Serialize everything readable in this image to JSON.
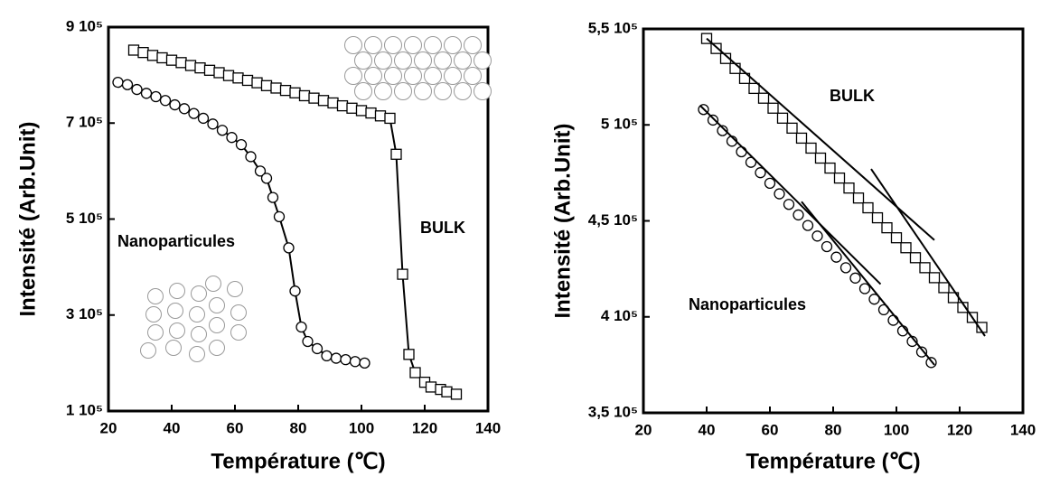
{
  "chart_data": [
    {
      "type": "line",
      "xlabel": "Température (℃)",
      "ylabel": "Intensité (Arb.Unit)",
      "xlim": [
        20,
        140
      ],
      "ylim": [
        100000,
        900000
      ],
      "xticks": [
        20,
        40,
        60,
        80,
        100,
        120,
        140
      ],
      "yticks": [
        {
          "value": 100000,
          "label": "1 10⁵"
        },
        {
          "value": 300000,
          "label": "3 10⁵"
        },
        {
          "value": 500000,
          "label": "5 10⁵"
        },
        {
          "value": 700000,
          "label": "7 10⁵"
        },
        {
          "value": 900000,
          "label": "9 10⁵"
        }
      ],
      "series": [
        {
          "name": "Nanoparticules",
          "color": "#000000",
          "marker": "circle",
          "x": [
            23,
            26,
            29,
            32,
            35,
            38,
            41,
            44,
            47,
            50,
            53,
            56,
            59,
            62,
            65,
            68,
            70,
            72,
            74,
            77,
            79,
            81,
            83,
            86,
            89,
            92,
            95,
            98,
            101
          ],
          "values": [
            785000,
            780000,
            770000,
            762000,
            755000,
            747000,
            738000,
            730000,
            720000,
            710000,
            698000,
            685000,
            670000,
            655000,
            630000,
            600000,
            585000,
            545000,
            505000,
            440000,
            350000,
            275000,
            245000,
            230000,
            215000,
            210000,
            207000,
            203000,
            200000
          ]
        },
        {
          "name": "BULK",
          "color": "#000000",
          "marker": "square",
          "x": [
            28,
            31,
            34,
            37,
            40,
            43,
            46,
            49,
            52,
            55,
            58,
            61,
            64,
            67,
            70,
            73,
            76,
            79,
            82,
            85,
            88,
            91,
            94,
            97,
            100,
            103,
            106,
            109,
            111,
            113,
            115,
            117,
            120,
            122,
            125,
            127,
            130
          ],
          "values": [
            852000,
            847000,
            841000,
            836000,
            831000,
            826000,
            820000,
            815000,
            810000,
            805000,
            799000,
            794000,
            789000,
            784000,
            778000,
            773000,
            768000,
            763000,
            757000,
            752000,
            747000,
            742000,
            736000,
            731000,
            726000,
            721000,
            715000,
            710000,
            635000,
            385000,
            218000,
            180000,
            160000,
            150000,
            145000,
            140000,
            135000
          ]
        }
      ]
    },
    {
      "type": "scatter",
      "xlabel": "Température (℃)",
      "ylabel": "Intensité (Arb.Unit)",
      "xlim": [
        20,
        140
      ],
      "ylim": [
        350000,
        550000
      ],
      "xticks": [
        20,
        40,
        60,
        80,
        100,
        120,
        140
      ],
      "yticks": [
        {
          "value": 350000,
          "label": "3,5 10⁵"
        },
        {
          "value": 400000,
          "label": "4 10⁵"
        },
        {
          "value": 450000,
          "label": "4,5 10⁵"
        },
        {
          "value": 500000,
          "label": "5 10⁵"
        },
        {
          "value": 550000,
          "label": "5,5 10⁵"
        }
      ],
      "series": [
        {
          "name": "BULK",
          "color": "#000000",
          "marker": "square",
          "x": [
            40,
            43,
            46,
            49,
            52,
            55,
            58,
            61,
            64,
            67,
            70,
            73,
            76,
            79,
            82,
            85,
            88,
            91,
            94,
            97,
            100,
            103,
            106,
            109,
            112,
            115,
            118,
            121,
            124,
            127
          ],
          "values": [
            545000,
            539800,
            534600,
            529400,
            524200,
            519000,
            513900,
            508700,
            503500,
            498300,
            493100,
            487900,
            482700,
            477500,
            472300,
            467100,
            461900,
            456800,
            451600,
            446400,
            441200,
            436000,
            430800,
            425600,
            420400,
            415200,
            410000,
            404900,
            399700,
            394500
          ]
        },
        {
          "name": "Nanoparticules",
          "color": "#000000",
          "marker": "circle",
          "x": [
            39,
            42,
            45,
            48,
            51,
            54,
            57,
            60,
            63,
            66,
            69,
            72,
            75,
            78,
            81,
            84,
            87,
            90,
            93,
            96,
            99,
            102,
            105,
            108,
            111
          ],
          "values": [
            508000,
            502500,
            497000,
            491500,
            486000,
            480500,
            475100,
            469600,
            464100,
            458600,
            453100,
            447600,
            442100,
            436600,
            431100,
            425600,
            420200,
            414700,
            409200,
            403700,
            398200,
            392700,
            387200,
            381700,
            376200
          ]
        }
      ],
      "fit_lines": [
        {
          "x": [
            40,
            112
          ],
          "values": [
            545000,
            440000
          ]
        },
        {
          "x": [
            92,
            128
          ],
          "values": [
            477000,
            390000
          ]
        },
        {
          "x": [
            38,
            95
          ],
          "values": [
            510000,
            417000
          ]
        },
        {
          "x": [
            70,
            112
          ],
          "values": [
            460000,
            375000
          ]
        }
      ]
    }
  ]
}
